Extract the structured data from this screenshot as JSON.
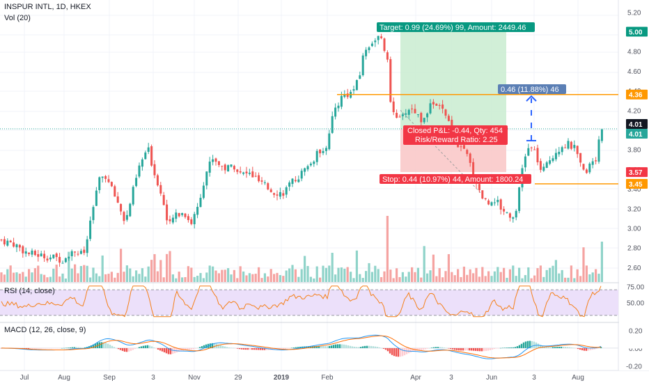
{
  "legend": {
    "title": "INSPUR INTL, 1D, HKEX",
    "vol": "Vol (20)",
    "rsi": "RSI (14, close)",
    "macd": "MACD (12, 26, close, 9)"
  },
  "colors": {
    "up": "#26a69a",
    "down": "#ef5350",
    "vol_up": "#8fd3c9",
    "vol_down": "#f5a3a1",
    "target_label": "#089981",
    "stop_label": "#f23645",
    "level_line": "#ff9800",
    "measure_label": "#5b7fb5",
    "arrow": "#2962ff",
    "rsi_line": "#f57f17",
    "rsi_band": "#ece0fa",
    "macd_line": "#2196f3",
    "signal_line": "#ff6d00",
    "hist_up_strong": "#26a69a",
    "hist_up_weak": "#b2dfdb",
    "hist_down_strong": "#ef5350",
    "hist_down_weak": "#ffcdd2"
  },
  "chart_data": {
    "type": "candlestick",
    "price_axis": {
      "ylim": [
        2.45,
        5.28
      ],
      "ticks": [
        "5.20",
        "4.80",
        "4.60",
        "4.40",
        "4.20",
        "3.80",
        "3.60",
        "3.40",
        "3.20",
        "3.00",
        "2.80",
        "2.60"
      ]
    },
    "time_axis": {
      "labels": [
        "Jul",
        "Aug",
        "Sep",
        "3",
        "Nov",
        "29",
        "2019",
        "Feb",
        "Apr",
        "3",
        "Jun",
        "3",
        "Aug"
      ]
    },
    "price_badges": [
      {
        "text": "5.00",
        "kind": "target"
      },
      {
        "text": "4.36",
        "kind": "level"
      },
      {
        "text": "4.01",
        "kind": "last"
      },
      {
        "text": "4.01",
        "kind": "last_green"
      },
      {
        "text": "3.57",
        "kind": "stop"
      },
      {
        "text": "3.45",
        "kind": "level"
      }
    ],
    "position": {
      "entry": 4.01,
      "target": 5.0,
      "stop": 3.57,
      "target_label": "Target: 0.99 (24.69%) 99, Amount: 2449.46",
      "stop_label": "Stop: 0.44 (10.97%) 44, Amount: 1800.24",
      "closed_label_1": "Closed P&L: -0.44, Qty: 454",
      "closed_label_2": "Risk/Reward Ratio: 2.25"
    },
    "levels": [
      4.36,
      3.45
    ],
    "measure": {
      "label": "0.46 (11.88%) 46",
      "from": 3.89,
      "to": 4.35
    },
    "price_anchors": [
      [
        0,
        2.88
      ],
      [
        20,
        2.84
      ],
      [
        40,
        2.74
      ],
      [
        60,
        2.72
      ],
      [
        90,
        2.68
      ],
      [
        105,
        2.78
      ],
      [
        120,
        2.72
      ],
      [
        130,
        3.05
      ],
      [
        140,
        3.45
      ],
      [
        150,
        3.55
      ],
      [
        160,
        3.4
      ],
      [
        170,
        3.25
      ],
      [
        180,
        3.05
      ],
      [
        190,
        3.35
      ],
      [
        200,
        3.62
      ],
      [
        212,
        3.82
      ],
      [
        222,
        3.55
      ],
      [
        232,
        3.35
      ],
      [
        242,
        3.0
      ],
      [
        252,
        3.15
      ],
      [
        265,
        3.15
      ],
      [
        275,
        3.05
      ],
      [
        285,
        3.25
      ],
      [
        295,
        3.55
      ],
      [
        305,
        3.72
      ],
      [
        315,
        3.65
      ],
      [
        325,
        3.6
      ],
      [
        335,
        3.65
      ],
      [
        345,
        3.55
      ],
      [
        360,
        3.55
      ],
      [
        375,
        3.45
      ],
      [
        390,
        3.38
      ],
      [
        405,
        3.35
      ],
      [
        418,
        3.45
      ],
      [
        432,
        3.55
      ],
      [
        446,
        3.65
      ],
      [
        458,
        3.78
      ],
      [
        470,
        3.85
      ],
      [
        480,
        4.2
      ],
      [
        492,
        4.35
      ],
      [
        505,
        4.38
      ],
      [
        515,
        4.5
      ],
      [
        522,
        4.78
      ],
      [
        532,
        4.88
      ],
      [
        542,
        4.95
      ],
      [
        550,
        4.88
      ],
      [
        556,
        4.72
      ],
      [
        560,
        4.3
      ],
      [
        566,
        4.2
      ],
      [
        575,
        4.08
      ],
      [
        585,
        4.22
      ],
      [
        595,
        4.2
      ],
      [
        605,
        4.1
      ],
      [
        615,
        4.22
      ],
      [
        625,
        4.28
      ],
      [
        635,
        4.2
      ],
      [
        645,
        4.05
      ],
      [
        652,
        3.92
      ],
      [
        660,
        3.82
      ],
      [
        670,
        3.75
      ],
      [
        680,
        3.55
      ],
      [
        690,
        3.35
      ],
      [
        700,
        3.25
      ],
      [
        710,
        3.3
      ],
      [
        720,
        3.2
      ],
      [
        730,
        3.15
      ],
      [
        738,
        3.1
      ],
      [
        745,
        3.35
      ],
      [
        752,
        3.7
      ],
      [
        760,
        3.82
      ],
      [
        768,
        3.78
      ],
      [
        778,
        3.55
      ],
      [
        788,
        3.68
      ],
      [
        798,
        3.78
      ],
      [
        808,
        3.85
      ],
      [
        818,
        3.85
      ],
      [
        826,
        3.8
      ],
      [
        834,
        3.62
      ],
      [
        840,
        3.55
      ],
      [
        848,
        3.68
      ],
      [
        856,
        3.72
      ],
      [
        864,
        4.01
      ]
    ],
    "rsi": {
      "ylim": [
        20,
        80
      ],
      "ticks": [
        "75.00",
        "50.00"
      ],
      "band": [
        70,
        30
      ],
      "last": 63
    },
    "macd": {
      "ylim": [
        -0.25,
        0.28
      ],
      "ticks": [
        "0.20",
        "0.00",
        "-0.20"
      ],
      "last_macd": 0.02,
      "last_signal": 0.01
    }
  }
}
